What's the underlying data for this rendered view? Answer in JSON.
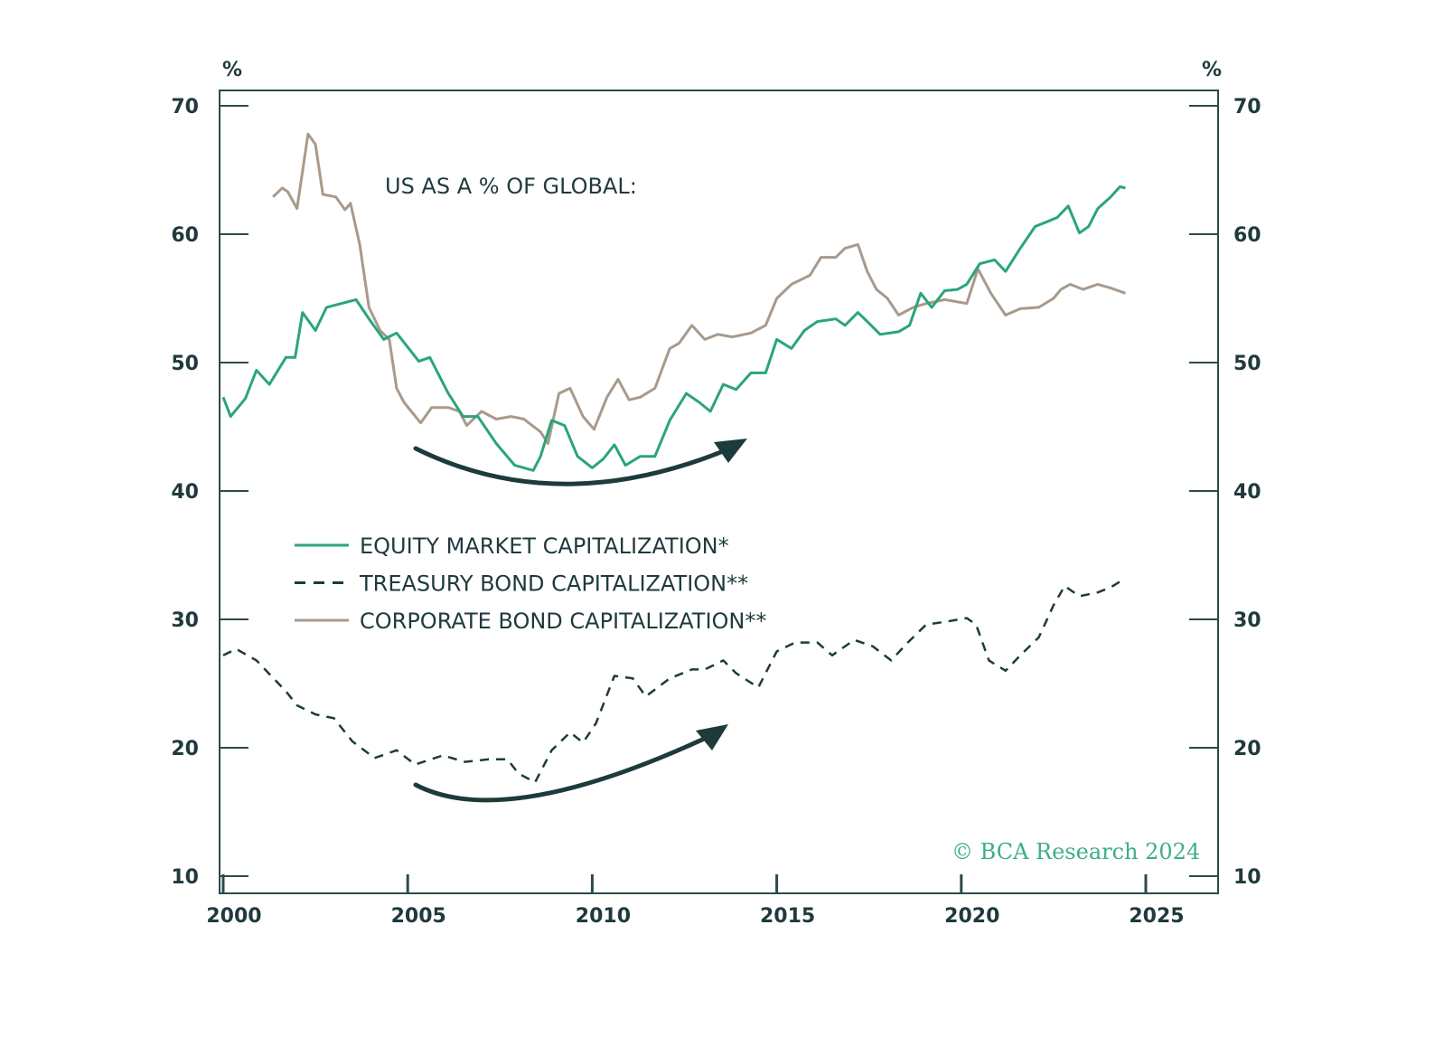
{
  "chart_data": {
    "type": "line",
    "title": "US AS A % OF GLOBAL:",
    "y_unit_left": "%",
    "y_unit_right": "%",
    "ylim": [
      10,
      70
    ],
    "yticks": [
      10,
      20,
      30,
      40,
      50,
      60,
      70
    ],
    "xlim": [
      2000,
      2027
    ],
    "xticks": [
      2000,
      2005,
      2010,
      2015,
      2020,
      2025
    ],
    "grid": false,
    "legend_placement": "center-left",
    "watermark": "© BCA Research 2024",
    "series": [
      {
        "name": "EQUITY MARKET CAPITALIZATION*",
        "color": "#2aa57a",
        "style": "solid",
        "x": [
          2000.0,
          2000.2,
          2000.6,
          2000.9,
          2001.25,
          2001.7,
          2001.95,
          2002.15,
          2002.5,
          2002.8,
          2003.2,
          2003.6,
          2004.0,
          2004.35,
          2004.7,
          2005.3,
          2005.6,
          2006.1,
          2006.5,
          2006.9,
          2007.4,
          2007.9,
          2008.4,
          2008.6,
          2008.9,
          2009.25,
          2009.6,
          2010.0,
          2010.3,
          2010.6,
          2010.9,
          2011.3,
          2011.7,
          2012.1,
          2012.55,
          2012.9,
          2013.2,
          2013.55,
          2013.9,
          2014.3,
          2014.7,
          2015.0,
          2015.4,
          2015.75,
          2016.1,
          2016.6,
          2016.85,
          2017.2,
          2017.45,
          2017.8,
          2018.3,
          2018.6,
          2018.9,
          2019.2,
          2019.55,
          2019.9,
          2020.15,
          2020.5,
          2020.9,
          2021.2,
          2021.6,
          2022.0,
          2022.35,
          2022.6,
          2022.9,
          2023.2,
          2023.45,
          2023.7,
          2024.05,
          2024.3,
          2024.45
        ],
        "y": [
          47.3,
          45.8,
          47.2,
          49.4,
          48.3,
          50.4,
          50.4,
          53.9,
          52.5,
          54.3,
          54.6,
          54.9,
          53.2,
          51.8,
          52.3,
          50.1,
          50.4,
          47.6,
          45.8,
          45.8,
          43.7,
          42.0,
          41.6,
          42.7,
          45.5,
          45.1,
          42.7,
          41.8,
          42.5,
          43.6,
          42.0,
          42.7,
          42.7,
          45.5,
          47.6,
          46.9,
          46.2,
          48.3,
          47.9,
          49.2,
          49.2,
          51.8,
          51.1,
          52.5,
          53.2,
          53.4,
          52.9,
          53.9,
          53.2,
          52.2,
          52.4,
          52.9,
          55.4,
          54.3,
          55.6,
          55.7,
          56.1,
          57.7,
          58.0,
          57.1,
          58.9,
          60.6,
          61.0,
          61.3,
          62.2,
          60.1,
          60.6,
          62.0,
          62.9,
          63.7,
          63.6
        ]
      },
      {
        "name": "TREASURY BOND CAPITALIZATION**",
        "color": "#1d3b3b",
        "style": "dashed",
        "x": [
          2000.0,
          2000.35,
          2000.9,
          2001.3,
          2001.7,
          2002.0,
          2002.5,
          2003.0,
          2003.5,
          2004.1,
          2004.7,
          2005.2,
          2005.95,
          2006.55,
          2007.2,
          2007.7,
          2008.0,
          2008.45,
          2008.9,
          2009.4,
          2009.75,
          2010.1,
          2010.6,
          2011.1,
          2011.45,
          2012.1,
          2012.7,
          2013.05,
          2013.55,
          2013.9,
          2014.5,
          2015.0,
          2015.5,
          2016.1,
          2016.5,
          2017.1,
          2017.6,
          2018.1,
          2018.55,
          2019.05,
          2019.55,
          2020.15,
          2020.4,
          2020.75,
          2021.2,
          2021.6,
          2022.1,
          2022.5,
          2022.8,
          2023.2,
          2023.7,
          2024.05,
          2024.45
        ],
        "y": [
          27.2,
          27.7,
          26.8,
          25.6,
          24.4,
          23.3,
          22.6,
          22.3,
          20.5,
          19.2,
          19.8,
          18.7,
          19.4,
          18.9,
          19.1,
          19.1,
          18.0,
          17.3,
          19.8,
          21.2,
          20.4,
          21.9,
          25.6,
          25.4,
          24.0,
          25.4,
          26.1,
          26.1,
          26.8,
          25.8,
          24.7,
          27.5,
          28.2,
          28.2,
          27.2,
          28.4,
          27.9,
          26.8,
          28.2,
          29.6,
          29.8,
          30.1,
          29.6,
          26.8,
          26.0,
          27.2,
          28.6,
          31.1,
          32.6,
          31.8,
          32.1,
          32.5,
          33.2
        ]
      },
      {
        "name": "CORPORATE BOND CAPITALIZATION**",
        "color": "#a89a8c",
        "style": "solid",
        "x": [
          2001.35,
          2001.6,
          2001.75,
          2002.0,
          2002.3,
          2002.5,
          2002.7,
          2003.05,
          2003.3,
          2003.45,
          2003.7,
          2003.95,
          2004.25,
          2004.5,
          2004.7,
          2004.9,
          2005.35,
          2005.65,
          2006.1,
          2006.4,
          2006.6,
          2007.0,
          2007.4,
          2007.8,
          2008.15,
          2008.6,
          2008.8,
          2009.1,
          2009.4,
          2009.75,
          2010.05,
          2010.4,
          2010.7,
          2011.0,
          2011.3,
          2011.7,
          2012.1,
          2012.35,
          2012.7,
          2013.05,
          2013.4,
          2013.8,
          2014.3,
          2014.7,
          2015.0,
          2015.4,
          2015.9,
          2016.2,
          2016.6,
          2016.85,
          2017.2,
          2017.45,
          2017.7,
          2018.0,
          2018.3,
          2018.7,
          2019.05,
          2019.55,
          2020.15,
          2020.45,
          2020.8,
          2021.2,
          2021.6,
          2022.1,
          2022.5,
          2022.7,
          2022.95,
          2023.3,
          2023.7,
          2024.05,
          2024.45
        ],
        "y": [
          62.9,
          63.6,
          63.3,
          62.0,
          67.8,
          67.0,
          63.1,
          62.9,
          61.9,
          62.4,
          59.2,
          54.3,
          52.5,
          51.8,
          48.0,
          46.9,
          45.3,
          46.5,
          46.5,
          46.2,
          45.1,
          46.2,
          45.6,
          45.8,
          45.6,
          44.6,
          43.7,
          47.6,
          48.0,
          45.8,
          44.8,
          47.3,
          48.7,
          47.1,
          47.3,
          48.0,
          51.1,
          51.5,
          52.9,
          51.8,
          52.2,
          52.0,
          52.3,
          52.9,
          55.0,
          56.1,
          56.8,
          58.2,
          58.2,
          58.9,
          59.2,
          57.1,
          55.7,
          55.0,
          53.7,
          54.3,
          54.6,
          54.9,
          54.6,
          57.3,
          55.4,
          53.7,
          54.2,
          54.3,
          55.0,
          55.7,
          56.1,
          55.7,
          56.1,
          55.8,
          55.4
        ]
      }
    ]
  }
}
